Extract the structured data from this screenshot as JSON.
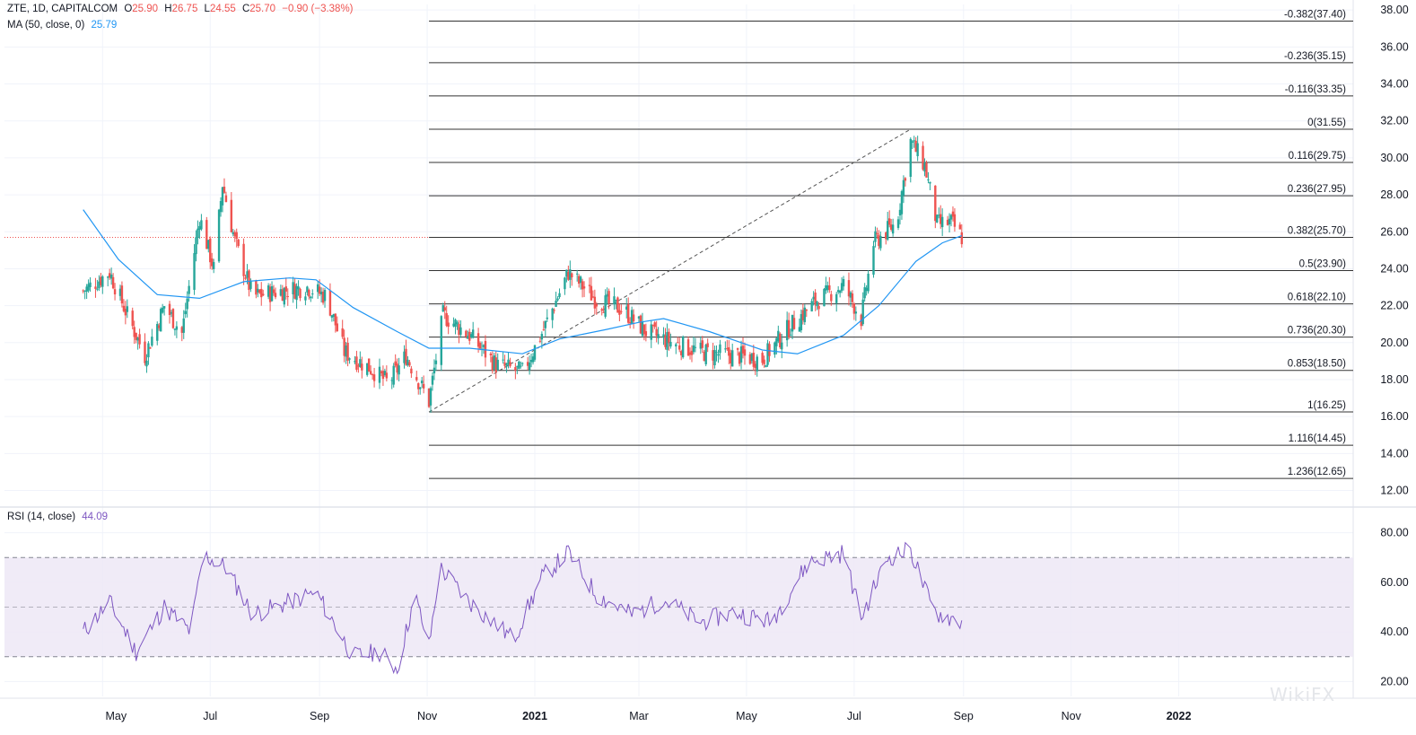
{
  "legend": {
    "symbol": "ZTE, 1D, CAPITALCOM",
    "o_label": "O",
    "o_value": "25.90",
    "h_label": "H",
    "h_value": "26.75",
    "l_label": "L",
    "l_value": "24.55",
    "c_label": "C",
    "c_value": "25.70",
    "change": "−0.90 (−3.38%)",
    "ma_label": "MA (50, close, 0)",
    "ma_value": "25.79",
    "rsi_label": "RSI (14, close)",
    "rsi_value": "44.09"
  },
  "watermark": "WikiFX",
  "colors": {
    "up": "#26a69a",
    "down": "#ef5350",
    "ma": "#2196f3",
    "rsi": "#7e57c2",
    "rsi_band": "#ede7f6",
    "grid": "#f0f3fa",
    "fib": "#333333",
    "price_line": "#ef5350"
  },
  "chart_data": [
    {
      "type": "candlestick",
      "x_axis": {
        "ticks": [
          "May",
          "Jul",
          "Sep",
          "Nov",
          "2021",
          "Mar",
          "May",
          "Jul",
          "Sep",
          "Nov",
          "2022"
        ]
      },
      "y_axis": {
        "ticks": [
          "12.00",
          "14.00",
          "16.00",
          "18.00",
          "20.00",
          "22.00",
          "24.00",
          "26.00",
          "28.00",
          "30.00",
          "32.00",
          "34.00",
          "36.00",
          "38.00"
        ],
        "range": [
          11.2,
          38.3
        ]
      },
      "current_price": 25.7,
      "fibonacci": {
        "levels": [
          {
            "label": "-0.382(37.40)",
            "price": 37.4
          },
          {
            "label": "-0.236(35.15)",
            "price": 35.15
          },
          {
            "label": "-0.116(33.35)",
            "price": 33.35
          },
          {
            "label": "0(31.55)",
            "price": 31.55
          },
          {
            "label": "0.116(29.75)",
            "price": 29.75
          },
          {
            "label": "0.236(27.95)",
            "price": 27.95
          },
          {
            "label": "0.382(25.70)",
            "price": 25.7
          },
          {
            "label": "0.5(23.90)",
            "price": 23.9
          },
          {
            "label": "0.618(22.10)",
            "price": 22.1
          },
          {
            "label": "0.736(20.30)",
            "price": 20.3
          },
          {
            "label": "0.853(18.50)",
            "price": 18.5
          },
          {
            "label": "1(16.25)",
            "price": 16.25
          },
          {
            "label": "1.116(14.45)",
            "price": 14.45
          },
          {
            "label": "1.236(12.65)",
            "price": 12.65
          }
        ],
        "trend": {
          "from": {
            "date": "2020-11-02",
            "price": 16.25
          },
          "to": {
            "date": "2021-08-02",
            "price": 31.55
          }
        }
      },
      "close_path": [
        {
          "date": "2020-04-20",
          "close": 22.8
        },
        {
          "date": "2020-05-05",
          "close": 23.8
        },
        {
          "date": "2020-05-15",
          "close": 21.5
        },
        {
          "date": "2020-05-25",
          "close": 19.3
        },
        {
          "date": "2020-06-05",
          "close": 22.0
        },
        {
          "date": "2020-06-15",
          "close": 20.5
        },
        {
          "date": "2020-06-25",
          "close": 26.8
        },
        {
          "date": "2020-07-03",
          "close": 24.0
        },
        {
          "date": "2020-07-08",
          "close": 28.6
        },
        {
          "date": "2020-07-15",
          "close": 25.5
        },
        {
          "date": "2020-07-25",
          "close": 22.5
        },
        {
          "date": "2020-08-10",
          "close": 22.8
        },
        {
          "date": "2020-08-25",
          "close": 23.0
        },
        {
          "date": "2020-09-05",
          "close": 22.5
        },
        {
          "date": "2020-09-15",
          "close": 19.5
        },
        {
          "date": "2020-09-30",
          "close": 18.6
        },
        {
          "date": "2020-10-10",
          "close": 17.8
        },
        {
          "date": "2020-10-20",
          "close": 19.3
        },
        {
          "date": "2020-11-02",
          "close": 16.8
        },
        {
          "date": "2020-11-10",
          "close": 21.5
        },
        {
          "date": "2020-11-25",
          "close": 20.4
        },
        {
          "date": "2020-12-10",
          "close": 18.8
        },
        {
          "date": "2020-12-25",
          "close": 18.4
        },
        {
          "date": "2021-01-05",
          "close": 20.5
        },
        {
          "date": "2021-01-20",
          "close": 23.8
        },
        {
          "date": "2021-02-05",
          "close": 22.3
        },
        {
          "date": "2021-02-20",
          "close": 21.8
        },
        {
          "date": "2021-03-05",
          "close": 20.6
        },
        {
          "date": "2021-03-20",
          "close": 20.0
        },
        {
          "date": "2021-04-05",
          "close": 19.5
        },
        {
          "date": "2021-04-25",
          "close": 19.3
        },
        {
          "date": "2021-05-10",
          "close": 19.1
        },
        {
          "date": "2021-05-25",
          "close": 20.8
        },
        {
          "date": "2021-06-10",
          "close": 22.3
        },
        {
          "date": "2021-06-25",
          "close": 23.1
        },
        {
          "date": "2021-07-05",
          "close": 21.3
        },
        {
          "date": "2021-07-12",
          "close": 25.4
        },
        {
          "date": "2021-07-25",
          "close": 26.5
        },
        {
          "date": "2021-08-02",
          "close": 30.9
        },
        {
          "date": "2021-08-10",
          "close": 29.6
        },
        {
          "date": "2021-08-17",
          "close": 26.4
        },
        {
          "date": "2021-08-25",
          "close": 26.5
        },
        {
          "date": "2021-08-31",
          "close": 25.7
        }
      ],
      "ma_path": [
        {
          "date": "2020-04-20",
          "value": 27.2
        },
        {
          "date": "2020-05-10",
          "value": 24.5
        },
        {
          "date": "2020-06-01",
          "value": 22.6
        },
        {
          "date": "2020-06-25",
          "value": 22.4
        },
        {
          "date": "2020-07-20",
          "value": 23.3
        },
        {
          "date": "2020-08-15",
          "value": 23.5
        },
        {
          "date": "2020-08-30",
          "value": 23.4
        },
        {
          "date": "2020-09-20",
          "value": 21.9
        },
        {
          "date": "2020-10-15",
          "value": 20.6
        },
        {
          "date": "2020-11-02",
          "value": 19.7
        },
        {
          "date": "2020-11-25",
          "value": 19.7
        },
        {
          "date": "2020-12-25",
          "value": 19.4
        },
        {
          "date": "2021-01-15",
          "value": 20.2
        },
        {
          "date": "2021-02-10",
          "value": 20.7
        },
        {
          "date": "2021-03-01",
          "value": 21.1
        },
        {
          "date": "2021-03-15",
          "value": 21.3
        },
        {
          "date": "2021-04-10",
          "value": 20.6
        },
        {
          "date": "2021-05-10",
          "value": 19.6
        },
        {
          "date": "2021-05-30",
          "value": 19.4
        },
        {
          "date": "2021-06-25",
          "value": 20.4
        },
        {
          "date": "2021-07-15",
          "value": 22.0
        },
        {
          "date": "2021-08-05",
          "value": 24.4
        },
        {
          "date": "2021-08-20",
          "value": 25.4
        },
        {
          "date": "2021-08-31",
          "value": 25.79
        }
      ]
    },
    {
      "type": "line",
      "name": "RSI (14, close)",
      "y_axis": {
        "ticks": [
          "20.00",
          "40.00",
          "60.00",
          "80.00"
        ],
        "range": [
          14,
          90
        ]
      },
      "bands": {
        "upper": 70,
        "middle": 50,
        "lower": 30
      },
      "points": [
        {
          "date": "2020-04-20",
          "value": 40
        },
        {
          "date": "2020-05-05",
          "value": 52
        },
        {
          "date": "2020-05-20",
          "value": 32
        },
        {
          "date": "2020-06-05",
          "value": 50
        },
        {
          "date": "2020-06-20",
          "value": 40
        },
        {
          "date": "2020-06-27",
          "value": 71
        },
        {
          "date": "2020-07-10",
          "value": 66
        },
        {
          "date": "2020-07-25",
          "value": 47
        },
        {
          "date": "2020-08-15",
          "value": 52
        },
        {
          "date": "2020-08-30",
          "value": 56
        },
        {
          "date": "2020-09-20",
          "value": 30
        },
        {
          "date": "2020-10-05",
          "value": 32
        },
        {
          "date": "2020-10-15",
          "value": 25
        },
        {
          "date": "2020-10-25",
          "value": 55
        },
        {
          "date": "2020-11-02",
          "value": 34
        },
        {
          "date": "2020-11-08",
          "value": 66
        },
        {
          "date": "2020-11-25",
          "value": 52
        },
        {
          "date": "2020-12-20",
          "value": 37
        },
        {
          "date": "2021-01-05",
          "value": 62
        },
        {
          "date": "2021-01-20",
          "value": 72
        },
        {
          "date": "2021-02-05",
          "value": 55
        },
        {
          "date": "2021-02-25",
          "value": 47
        },
        {
          "date": "2021-03-15",
          "value": 53
        },
        {
          "date": "2021-04-05",
          "value": 44
        },
        {
          "date": "2021-04-25",
          "value": 48
        },
        {
          "date": "2021-05-15",
          "value": 44
        },
        {
          "date": "2021-06-05",
          "value": 68
        },
        {
          "date": "2021-06-25",
          "value": 72
        },
        {
          "date": "2021-07-05",
          "value": 46
        },
        {
          "date": "2021-07-20",
          "value": 70
        },
        {
          "date": "2021-08-02",
          "value": 73
        },
        {
          "date": "2021-08-15",
          "value": 48
        },
        {
          "date": "2021-08-31",
          "value": 44.09
        }
      ]
    }
  ]
}
